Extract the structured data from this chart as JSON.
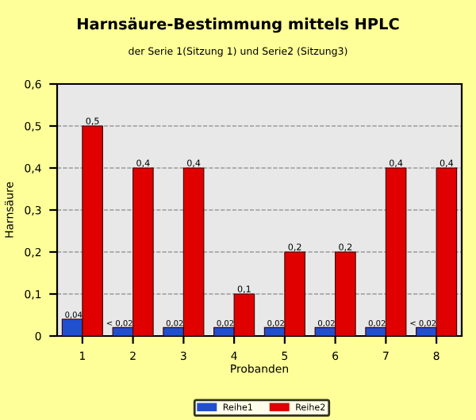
{
  "chart_data": {
    "type": "bar",
    "title": "Harnsäure-Bestimmung mittels HPLC",
    "subtitle": "der Serie 1(Sitzung 1) und Serie2 (Sitzung3)",
    "xlabel": "Probanden",
    "ylabel": "Harnsäure",
    "categories": [
      "1",
      "2",
      "3",
      "4",
      "5",
      "6",
      "7",
      "8"
    ],
    "series": [
      {
        "name": "Reihe1",
        "color": "#2050d0",
        "values": [
          0.04,
          0.02,
          0.02,
          0.02,
          0.02,
          0.02,
          0.02,
          0.02
        ],
        "value_labels": [
          "0,04",
          "< 0,02",
          "0,02",
          "0,02",
          "0,02",
          "0,02",
          "0,02",
          "< 0,02"
        ]
      },
      {
        "name": "Reihe2",
        "color": "#e00000",
        "values": [
          0.5,
          0.4,
          0.4,
          0.1,
          0.2,
          0.2,
          0.4,
          0.4
        ],
        "value_labels": [
          "0,5",
          "0,4",
          "0,4",
          "0,1",
          "0,2",
          "0,2",
          "0,4",
          "0,4"
        ]
      }
    ],
    "ylim": [
      0,
      0.6
    ],
    "yticks": [
      {
        "value": 0,
        "label": "0"
      },
      {
        "value": 0.1,
        "label": "0,1"
      },
      {
        "value": 0.2,
        "label": "0,2"
      },
      {
        "value": 0.3,
        "label": "0,3"
      },
      {
        "value": 0.4,
        "label": "0,4"
      },
      {
        "value": 0.5,
        "label": "0,5"
      },
      {
        "value": 0.6,
        "label": "0,6"
      }
    ],
    "grid": "y",
    "legend": "bottom"
  }
}
